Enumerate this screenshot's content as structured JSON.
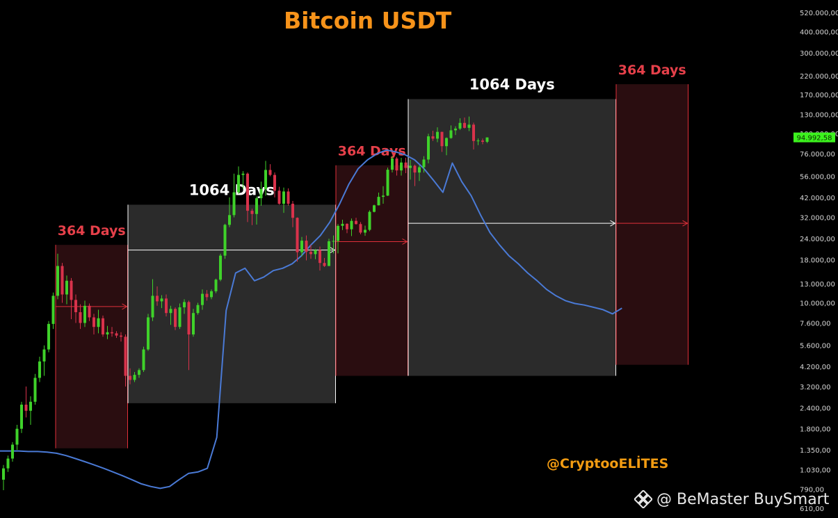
{
  "title": "Bitcoin USDT",
  "credit": "@CryptooELİTES",
  "watermark": "@ BeMaster BuySmart",
  "colors": {
    "background": "#000000",
    "bull": "#3fd22a",
    "bear": "#d9324b",
    "bear_window_fill": "#2a0d10",
    "bear_window_stroke": "#e0303a",
    "bull_window_fill": "#2b2b2b",
    "bull_window_stroke": "#ffffff",
    "overlay_line": "#4a7ad6",
    "label_red": "#e6404a",
    "label_white": "#ffffff",
    "price_tag": "#3cf21e"
  },
  "chart_data": {
    "type": "candlestick",
    "yscale": "log",
    "ylim": [
      610,
      520000
    ],
    "y_ticks": [
      "520.000,00",
      "400.000,00",
      "300.000,00",
      "220.000,00",
      "170.000,00",
      "130.000,00",
      "100.000,00",
      "76.000,00",
      "56.000,00",
      "42.000,00",
      "32.000,00",
      "24.000,00",
      "18.000,00",
      "13.000,00",
      "10.000,00",
      "7.600,00",
      "5.600,00",
      "4.200,00",
      "3.200,00",
      "2.400,00",
      "1.800,00",
      "1.350,00",
      "1.030,00",
      "790,00",
      "610,00"
    ],
    "y_tick_values": [
      520000,
      400000,
      300000,
      220000,
      170000,
      130000,
      100000,
      76000,
      56000,
      42000,
      32000,
      24000,
      18000,
      13000,
      10000,
      7600,
      5600,
      4200,
      3200,
      2400,
      1800,
      1350,
      1030,
      790,
      610
    ],
    "last_price": "94.992,58",
    "last_price_value": 94992.58,
    "periods": [
      {
        "kind": "bear",
        "label": "364 Days",
        "start": 12,
        "end": 27,
        "high": 22000,
        "low": 1380,
        "level": 9500
      },
      {
        "kind": "bull",
        "label": "1064 Days",
        "start": 28,
        "end": 73,
        "high": 38000,
        "low": 2550,
        "level": 20500
      },
      {
        "kind": "bear",
        "label": "364 Days",
        "start": 74,
        "end": 89,
        "high": 65000,
        "low": 3700,
        "level": 23000
      },
      {
        "kind": "bull",
        "label": "1064 Days",
        "start": 90,
        "end": 135,
        "high": 160000,
        "low": 3700,
        "level": 29500
      },
      {
        "kind": "bear",
        "label": "364 Days",
        "start": 136,
        "end": 151,
        "high": 196000,
        "low": 4300,
        "level": 29500
      }
    ],
    "candles": {
      "fields": [
        "open",
        "high",
        "low",
        "close"
      ],
      "values": [
        [
          900,
          1100,
          780,
          1050
        ],
        [
          1050,
          1250,
          1000,
          1200
        ],
        [
          1200,
          1500,
          1150,
          1450
        ],
        [
          1450,
          1900,
          1350,
          1800
        ],
        [
          1800,
          2600,
          1700,
          2500
        ],
        [
          2500,
          3200,
          2100,
          2300
        ],
        [
          2300,
          2800,
          1900,
          2600
        ],
        [
          2600,
          3800,
          2500,
          3600
        ],
        [
          3600,
          4800,
          3400,
          4500
        ],
        [
          4500,
          5600,
          3700,
          5300
        ],
        [
          5300,
          7800,
          5100,
          7500
        ],
        [
          7500,
          11500,
          7000,
          11000
        ],
        [
          11000,
          19500,
          10500,
          16500
        ],
        [
          16500,
          17200,
          10000,
          11200
        ],
        [
          11200,
          14500,
          9800,
          13500
        ],
        [
          13500,
          14000,
          8000,
          10400
        ],
        [
          10400,
          11200,
          7600,
          8800
        ],
        [
          8800,
          9800,
          7000,
          7600
        ],
        [
          7600,
          10300,
          7200,
          9600
        ],
        [
          9600,
          9900,
          7800,
          8200
        ],
        [
          8200,
          8600,
          6500,
          7200
        ],
        [
          7200,
          9100,
          6600,
          8100
        ],
        [
          8100,
          8400,
          6300,
          6500
        ],
        [
          6500,
          7300,
          6100,
          6700
        ],
        [
          6700,
          7200,
          6300,
          6600
        ],
        [
          6600,
          6800,
          6200,
          6400
        ],
        [
          6400,
          6700,
          5900,
          6300
        ],
        [
          6300,
          6500,
          3200,
          3700
        ],
        [
          3700,
          4100,
          3300,
          3500
        ],
        [
          3500,
          3900,
          3400,
          3750
        ],
        [
          3750,
          4100,
          3600,
          4000
        ],
        [
          4000,
          5500,
          3900,
          5300
        ],
        [
          5300,
          8600,
          5200,
          8200
        ],
        [
          8200,
          13800,
          7800,
          11000
        ],
        [
          11000,
          12500,
          9600,
          10200
        ],
        [
          10200,
          11100,
          9300,
          10600
        ],
        [
          10600,
          11200,
          8300,
          8700
        ],
        [
          8700,
          9600,
          7400,
          9200
        ],
        [
          9200,
          9400,
          6900,
          7200
        ],
        [
          7200,
          9900,
          7000,
          9400
        ],
        [
          9400,
          10500,
          8600,
          10100
        ],
        [
          10100,
          10300,
          4000,
          6500
        ],
        [
          6500,
          9200,
          6300,
          8700
        ],
        [
          8700,
          10000,
          8500,
          9700
        ],
        [
          9700,
          12000,
          9100,
          11300
        ],
        [
          11300,
          11900,
          10300,
          10800
        ],
        [
          10800,
          12000,
          10500,
          11700
        ],
        [
          11700,
          13900,
          11400,
          13700
        ],
        [
          13700,
          19500,
          13400,
          19000
        ],
        [
          19000,
          29300,
          18200,
          28900
        ],
        [
          28900,
          42000,
          28000,
          33000
        ],
        [
          33000,
          58000,
          32000,
          45000
        ],
        [
          45000,
          64000,
          44000,
          57000
        ],
        [
          57000,
          60000,
          47000,
          58000
        ],
        [
          58000,
          59000,
          30000,
          35000
        ],
        [
          35000,
          36000,
          28800,
          33500
        ],
        [
          33500,
          42500,
          29000,
          41500
        ],
        [
          41500,
          52000,
          37500,
          47000
        ],
        [
          47000,
          69000,
          43000,
          61000
        ],
        [
          61000,
          66000,
          56000,
          57000
        ],
        [
          57000,
          59000,
          42000,
          46000
        ],
        [
          46000,
          48500,
          38000,
          38500
        ],
        [
          38500,
          48000,
          34000,
          45500
        ],
        [
          45500,
          47500,
          37500,
          38500
        ],
        [
          38500,
          40000,
          28000,
          31800
        ],
        [
          31800,
          32000,
          17500,
          19900
        ],
        [
          19900,
          24500,
          18800,
          23300
        ],
        [
          23300,
          25000,
          17800,
          20000
        ],
        [
          20000,
          22000,
          18200,
          19400
        ],
        [
          19400,
          20800,
          18100,
          20500
        ],
        [
          20500,
          21500,
          15500,
          17200
        ],
        [
          17200,
          18400,
          16300,
          16500
        ],
        [
          16500,
          23900,
          16500,
          23100
        ],
        [
          23100,
          25000,
          19600,
          23200
        ],
        [
          23200,
          29200,
          19600,
          28500
        ],
        [
          28500,
          31000,
          26900,
          29300
        ],
        [
          29300,
          29500,
          25800,
          27200
        ],
        [
          27200,
          31500,
          24800,
          30500
        ],
        [
          30500,
          31800,
          29000,
          29200
        ],
        [
          29200,
          30000,
          25400,
          26000
        ],
        [
          26000,
          28600,
          24900,
          27000
        ],
        [
          27000,
          35200,
          26500,
          34500
        ],
        [
          34500,
          38000,
          34200,
          37700
        ],
        [
          37700,
          44800,
          37600,
          42300
        ],
        [
          42300,
          48900,
          38500,
          43000
        ],
        [
          43000,
          63000,
          42800,
          61200
        ],
        [
          61200,
          73800,
          59000,
          71300
        ],
        [
          71300,
          72800,
          56500,
          60600
        ],
        [
          60600,
          71900,
          56500,
          67500
        ],
        [
          67500,
          72000,
          58400,
          62700
        ],
        [
          62700,
          70000,
          53500,
          64600
        ],
        [
          64600,
          65600,
          49000,
          58900
        ],
        [
          58900,
          64900,
          52500,
          63300
        ],
        [
          63300,
          73600,
          58800,
          70300
        ],
        [
          70300,
          99800,
          66800,
          96400
        ],
        [
          96400,
          104000,
          90500,
          93400
        ],
        [
          93400,
          109000,
          89000,
          102400
        ],
        [
          102400,
          102700,
          78000,
          84300
        ],
        [
          84300,
          95000,
          74500,
          94200
        ],
        [
          94200,
          111900,
          93300,
          104600
        ],
        [
          104600,
          110500,
          98200,
          107100
        ],
        [
          107100,
          123200,
          105100,
          115700
        ],
        [
          115700,
          124500,
          107300,
          108200
        ],
        [
          108200,
          126200,
          103500,
          113000
        ],
        [
          113000,
          116200,
          80600,
          90500
        ],
        [
          90500,
          93700,
          85500,
          91000
        ],
        [
          91000,
          93500,
          86500,
          89500
        ],
        [
          89500,
          95000,
          88000,
          94990
        ]
      ]
    },
    "overlay_line": {
      "description": "secondary series (blue)",
      "values": [
        1330,
        1330,
        1330,
        1320,
        1320,
        1310,
        1290,
        1250,
        1200,
        1150,
        1100,
        1050,
        1000,
        950,
        900,
        850,
        820,
        800,
        820,
        900,
        980,
        1000,
        1050,
        1600,
        9000,
        15000,
        16000,
        13500,
        14200,
        15500,
        16000,
        17000,
        19000,
        22000,
        25000,
        30000,
        38000,
        50000,
        62000,
        70000,
        76000,
        80000,
        78000,
        75000,
        70000,
        62000,
        53000,
        45000,
        67000,
        52000,
        43000,
        33000,
        26000,
        22000,
        19000,
        17000,
        15000,
        13500,
        12000,
        11000,
        10300,
        9900,
        9700,
        9400,
        9100,
        8600,
        9300
      ]
    }
  }
}
